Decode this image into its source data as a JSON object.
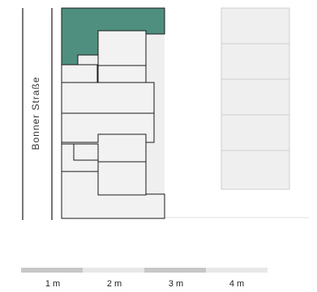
{
  "street": {
    "name": "Bonner Straße"
  },
  "scale_bar": {
    "labels": [
      "1 m",
      "2 m",
      "3 m",
      "4 m"
    ]
  },
  "colors": {
    "highlight": "#4f8f7f",
    "unit_fill": "#f2f2f2",
    "outline": "#1a1a1a",
    "neighbor_fill": "#efefef",
    "neighbor_outline": "#cfcfcf",
    "scale_dark": "#c7c7c7",
    "scale_light": "#e8e8e8"
  },
  "highlighted_unit": {
    "status": "selected"
  }
}
